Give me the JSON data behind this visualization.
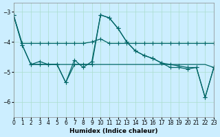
{
  "xlabel": "Humidex (Indice chaleur)",
  "ylabel": "",
  "background_color": "#cceeff",
  "plot_bg_color": "#cceeff",
  "grid_color": "#aaddcc",
  "line_color": "#006666",
  "xlim": [
    0,
    23
  ],
  "ylim": [
    -6.5,
    -2.7
  ],
  "yticks": [
    -6,
    -5,
    -4,
    -3
  ],
  "xticks": [
    0,
    1,
    2,
    3,
    4,
    5,
    6,
    7,
    8,
    9,
    10,
    11,
    12,
    13,
    14,
    15,
    16,
    17,
    18,
    19,
    20,
    21,
    22,
    23
  ],
  "series1": [
    [
      0,
      -3.1
    ],
    [
      1,
      -4.05
    ],
    [
      2,
      -4.05
    ],
    [
      3,
      -4.05
    ],
    [
      4,
      -4.05
    ],
    [
      5,
      -4.05
    ],
    [
      6,
      -4.05
    ],
    [
      7,
      -4.05
    ],
    [
      8,
      -4.05
    ],
    [
      9,
      -4.0
    ],
    [
      10,
      -3.9
    ],
    [
      11,
      -4.05
    ],
    [
      12,
      -4.05
    ],
    [
      13,
      -4.05
    ],
    [
      14,
      -4.05
    ],
    [
      15,
      -4.05
    ],
    [
      16,
      -4.05
    ],
    [
      17,
      -4.05
    ],
    [
      18,
      -4.05
    ],
    [
      19,
      -4.05
    ],
    [
      20,
      -4.05
    ],
    [
      21,
      -4.05
    ],
    [
      22,
      -4.05
    ],
    [
      23,
      -4.05
    ]
  ],
  "series2": [
    [
      0,
      -3.1
    ],
    [
      1,
      -4.1
    ],
    [
      2,
      -4.75
    ],
    [
      3,
      -4.75
    ],
    [
      4,
      -4.75
    ],
    [
      5,
      -4.75
    ],
    [
      6,
      -5.35
    ],
    [
      7,
      -4.75
    ],
    [
      8,
      -4.75
    ],
    [
      9,
      -4.75
    ],
    [
      10,
      -3.1
    ],
    [
      11,
      -3.2
    ],
    [
      12,
      -3.55
    ],
    [
      13,
      -4.0
    ],
    [
      14,
      -4.3
    ],
    [
      15,
      -4.45
    ],
    [
      16,
      -4.55
    ],
    [
      17,
      -4.7
    ],
    [
      18,
      -4.75
    ],
    [
      19,
      -4.8
    ],
    [
      20,
      -4.85
    ],
    [
      21,
      -4.85
    ],
    [
      22,
      -5.85
    ],
    [
      23,
      -4.85
    ]
  ],
  "series3": [
    [
      0,
      -3.1
    ],
    [
      1,
      -4.1
    ],
    [
      2,
      -4.75
    ],
    [
      3,
      -4.65
    ],
    [
      4,
      -4.75
    ],
    [
      5,
      -4.75
    ],
    [
      6,
      -5.35
    ],
    [
      7,
      -4.6
    ],
    [
      8,
      -4.85
    ],
    [
      9,
      -4.65
    ],
    [
      10,
      -3.1
    ],
    [
      11,
      -3.2
    ],
    [
      12,
      -3.55
    ],
    [
      13,
      -4.0
    ],
    [
      14,
      -4.3
    ],
    [
      15,
      -4.45
    ],
    [
      16,
      -4.55
    ],
    [
      17,
      -4.7
    ],
    [
      18,
      -4.85
    ],
    [
      19,
      -4.85
    ],
    [
      20,
      -4.9
    ],
    [
      21,
      -4.85
    ],
    [
      22,
      -5.85
    ],
    [
      23,
      -4.85
    ]
  ],
  "series4": [
    [
      2,
      -4.75
    ],
    [
      3,
      -4.75
    ],
    [
      4,
      -4.75
    ],
    [
      5,
      -4.75
    ],
    [
      6,
      -4.75
    ],
    [
      7,
      -4.75
    ],
    [
      8,
      -4.75
    ],
    [
      9,
      -4.75
    ],
    [
      10,
      -4.75
    ],
    [
      11,
      -4.75
    ],
    [
      12,
      -4.75
    ],
    [
      13,
      -4.75
    ],
    [
      14,
      -4.75
    ],
    [
      15,
      -4.75
    ],
    [
      16,
      -4.75
    ],
    [
      17,
      -4.75
    ],
    [
      18,
      -4.75
    ],
    [
      19,
      -4.75
    ],
    [
      20,
      -4.75
    ],
    [
      21,
      -4.75
    ],
    [
      22,
      -4.75
    ],
    [
      23,
      -4.85
    ]
  ]
}
